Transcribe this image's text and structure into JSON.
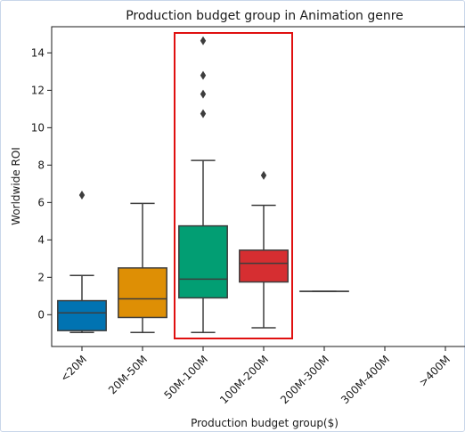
{
  "chart_data": {
    "type": "box",
    "title": "Production budget group in Animation genre",
    "xlabel": "Production budget group($)",
    "ylabel": "Worldwide ROI",
    "ylim": [
      -1.7,
      15.4
    ],
    "yticks": [
      0,
      2,
      4,
      6,
      8,
      10,
      12,
      14
    ],
    "categories": [
      "<20M",
      "20M-50M",
      "50M-100M",
      "100M-200M",
      "200M-300M",
      "300M-400M",
      ">400M"
    ],
    "boxes": [
      {
        "category": "<20M",
        "whisker_low": -0.95,
        "q1": -0.85,
        "median": 0.1,
        "q3": 0.75,
        "whisker_high": 2.1,
        "outliers": [
          6.4
        ],
        "color": "#0173b2"
      },
      {
        "category": "20M-50M",
        "whisker_low": -0.95,
        "q1": -0.15,
        "median": 0.85,
        "q3": 2.5,
        "whisker_high": 5.95,
        "outliers": [],
        "color": "#de8f05"
      },
      {
        "category": "50M-100M",
        "whisker_low": -0.95,
        "q1": 0.9,
        "median": 1.9,
        "q3": 4.75,
        "whisker_high": 8.25,
        "outliers": [
          10.75,
          11.8,
          12.8,
          14.65
        ],
        "color": "#029e73"
      },
      {
        "category": "100M-200M",
        "whisker_low": -0.7,
        "q1": 1.75,
        "median": 2.75,
        "q3": 3.45,
        "whisker_high": 5.85,
        "outliers": [
          7.45
        ],
        "color": "#d62e31"
      },
      {
        "category": "200M-300M",
        "whisker_low": 1.25,
        "q1": 1.25,
        "median": 1.25,
        "q3": 1.25,
        "whisker_high": 1.25,
        "outliers": [],
        "color": "#cc78bc"
      },
      {
        "category": "300M-400M",
        "empty": true
      },
      {
        "category": ">400M",
        "empty": true
      }
    ],
    "highlight": {
      "categories": [
        "50M-100M",
        "100M-200M"
      ],
      "color": "#e01010"
    },
    "grid": false,
    "legend": "none"
  }
}
